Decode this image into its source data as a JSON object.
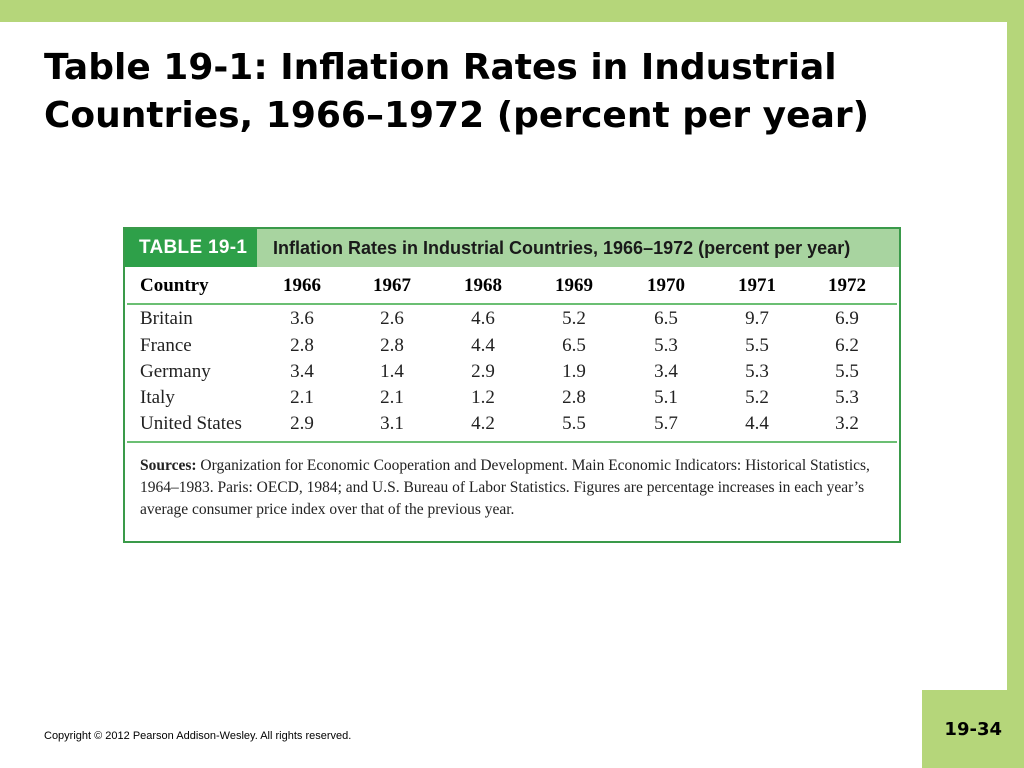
{
  "slide": {
    "title_line1": "Table 19-1: Inflation Rates in Industrial",
    "title_line2": "Countries, 1966–1972 (percent per year)",
    "copyright": "Copyright © 2012 Pearson Addison-Wesley. All rights reserved.",
    "page_number": "19-34"
  },
  "table": {
    "tag": "TABLE 19-1",
    "caption": "Inflation Rates in Industrial Countries, 1966–1972 (percent per year)",
    "country_header": "Country",
    "years": [
      "1966",
      "1967",
      "1968",
      "1969",
      "1970",
      "1971",
      "1972"
    ],
    "rows": [
      {
        "country": "Britain",
        "values": [
          "3.6",
          "2.6",
          "4.6",
          "5.2",
          "6.5",
          "9.7",
          "6.9"
        ]
      },
      {
        "country": "France",
        "values": [
          "2.8",
          "2.8",
          "4.4",
          "6.5",
          "5.3",
          "5.5",
          "6.2"
        ]
      },
      {
        "country": "Germany",
        "values": [
          "3.4",
          "1.4",
          "2.9",
          "1.9",
          "3.4",
          "5.3",
          "5.5"
        ]
      },
      {
        "country": "Italy",
        "values": [
          "2.1",
          "2.1",
          "1.2",
          "2.8",
          "5.1",
          "5.2",
          "5.3"
        ]
      },
      {
        "country": "United States",
        "values": [
          "2.9",
          "3.1",
          "4.2",
          "5.5",
          "5.7",
          "4.4",
          "3.2"
        ]
      }
    ],
    "sources_label": "Sources:",
    "sources_text": "Organization for Economic Cooperation and Development. Main Economic Indicators: Historical Statistics, 1964–1983. Paris: OECD, 1984; and U.S. Bureau of Labor Statistics. Figures are percentage increases in each year’s average consumer price index over that of the previous year."
  },
  "colors": {
    "accent_green": "#2ea049",
    "light_green": "#a8d4a0",
    "frame_green": "#b5d67a"
  }
}
